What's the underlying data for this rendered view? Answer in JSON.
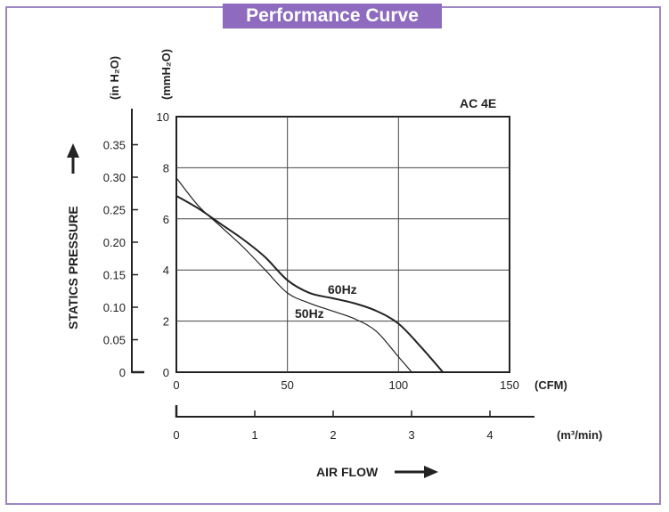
{
  "title": "Performance Curve",
  "colors": {
    "frame": "#9b87c4",
    "title_bg": "#8e6bbf",
    "title_text": "#ffffff",
    "curve": "#222222",
    "grid": "#444444"
  },
  "chart_data": {
    "type": "line",
    "annotation": "AC 4E",
    "grid": true,
    "xlabel": "AIR FLOW",
    "ylabel": "STATICS PRESSURE",
    "x_axis": {
      "unit": "(CFM)",
      "range": [
        0,
        150
      ],
      "ticks": [
        0,
        50,
        100,
        150
      ],
      "secondary": {
        "unit": "(m³/min)",
        "ticks": [
          0,
          1,
          2,
          3,
          4
        ]
      }
    },
    "y_axis": {
      "unit": "(mmH₂O)",
      "range": [
        0,
        10
      ],
      "ticks": [
        0,
        2,
        4,
        6,
        8,
        10
      ],
      "secondary": {
        "unit": "(in H₂O)",
        "ticks": [
          "0",
          "0.05",
          "0.10",
          "0.15",
          "0.20",
          "0.25",
          "0.30",
          "0.35"
        ]
      }
    },
    "series": [
      {
        "name": "60Hz",
        "x": [
          0,
          10,
          20,
          30,
          40,
          50,
          60,
          70,
          80,
          90,
          100,
          110,
          120
        ],
        "y": [
          6.9,
          6.4,
          5.8,
          5.2,
          4.5,
          3.6,
          3.1,
          2.9,
          2.7,
          2.4,
          1.9,
          1.0,
          0
        ]
      },
      {
        "name": "50Hz",
        "x": [
          0,
          10,
          20,
          30,
          40,
          50,
          60,
          70,
          80,
          90,
          100,
          106
        ],
        "y": [
          7.6,
          6.5,
          5.7,
          4.9,
          4.0,
          3.1,
          2.7,
          2.4,
          2.1,
          1.6,
          0.6,
          0
        ]
      }
    ]
  }
}
